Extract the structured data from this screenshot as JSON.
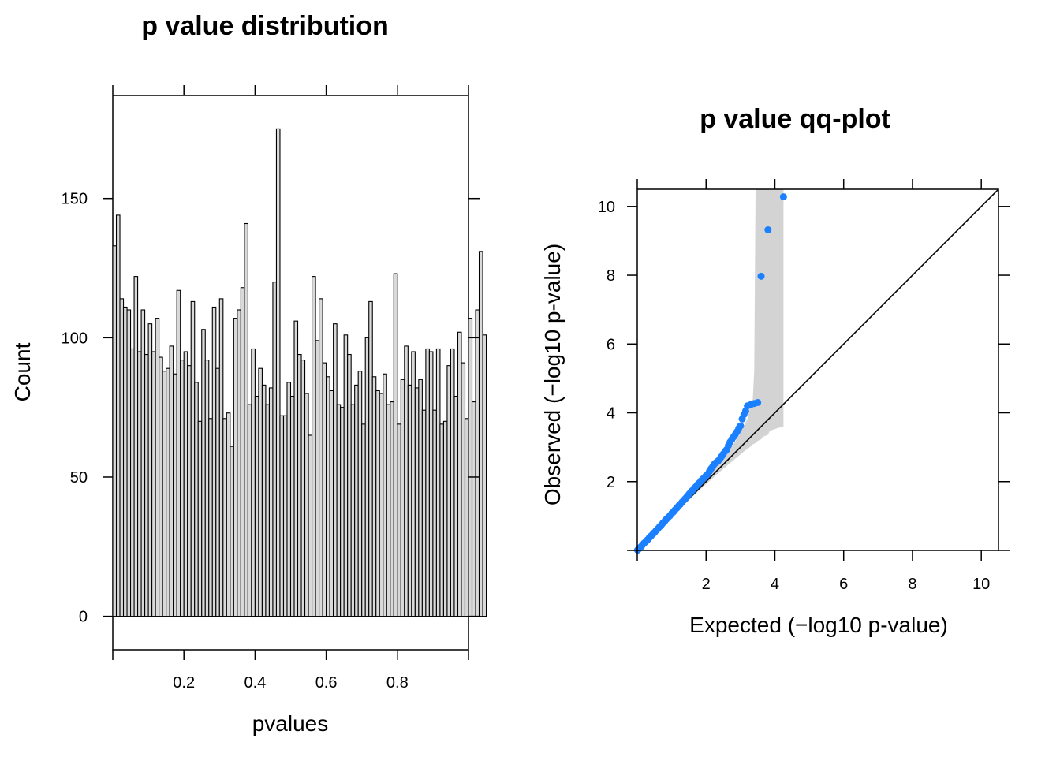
{
  "chart_data": [
    {
      "type": "bar",
      "title": "p value distribution",
      "xlabel": "pvalues",
      "ylabel": "Count",
      "bin_width": 0.01,
      "xlim": [
        0,
        1
      ],
      "ylim": [
        -12,
        187
      ],
      "x_ticks": [
        "0.2",
        "0.4",
        "0.6",
        "0.8"
      ],
      "y_ticks": [
        "0",
        "50",
        "100",
        "150"
      ],
      "bar_color": "#d9d9d9",
      "values": [
        133,
        144,
        114,
        111,
        110,
        96,
        122,
        95,
        110,
        94,
        105,
        95,
        107,
        93,
        88,
        89,
        97,
        87,
        117,
        92,
        95,
        90,
        113,
        84,
        70,
        103,
        92,
        71,
        111,
        89,
        114,
        71,
        73,
        61,
        107,
        110,
        118,
        141,
        76,
        96,
        79,
        89,
        83,
        76,
        82,
        120,
        175,
        72,
        72,
        84,
        79,
        106,
        94,
        92,
        80,
        65,
        122,
        99,
        114,
        91,
        86,
        81,
        105,
        76,
        75,
        101,
        94,
        76,
        83,
        88,
        69,
        100,
        113,
        86,
        81,
        80,
        87,
        76,
        77,
        123,
        69,
        85,
        97,
        83,
        95,
        82,
        85,
        74,
        96,
        95,
        74,
        96,
        69,
        70,
        90,
        96,
        79,
        102,
        91,
        71,
        107,
        77,
        110,
        131,
        101
      ]
    },
    {
      "type": "scatter",
      "title": "p value qq-plot",
      "xlabel": "Expected (−log10 p-value)",
      "ylabel": "Observed (−log10 p-value)",
      "xlim": [
        0,
        10.5
      ],
      "ylim": [
        0,
        10.5
      ],
      "x_ticks": [
        "2",
        "4",
        "6",
        "8",
        "10"
      ],
      "y_ticks": [
        "2",
        "4",
        "6",
        "8",
        "10"
      ],
      "point_color": "#1a80ff",
      "band_color": "#d3d3d3",
      "reference_line": "y = x",
      "points": [
        [
          0.01,
          0.01
        ],
        [
          0.05,
          0.05
        ],
        [
          0.1,
          0.1
        ],
        [
          0.15,
          0.16
        ],
        [
          0.2,
          0.21
        ],
        [
          0.25,
          0.26
        ],
        [
          0.3,
          0.31
        ],
        [
          0.35,
          0.37
        ],
        [
          0.4,
          0.42
        ],
        [
          0.45,
          0.47
        ],
        [
          0.5,
          0.52
        ],
        [
          0.55,
          0.58
        ],
        [
          0.6,
          0.63
        ],
        [
          0.65,
          0.69
        ],
        [
          0.7,
          0.74
        ],
        [
          0.75,
          0.8
        ],
        [
          0.8,
          0.85
        ],
        [
          0.85,
          0.91
        ],
        [
          0.9,
          0.96
        ],
        [
          0.95,
          1.01
        ],
        [
          1.0,
          1.07
        ],
        [
          1.05,
          1.12
        ],
        [
          1.1,
          1.18
        ],
        [
          1.15,
          1.23
        ],
        [
          1.2,
          1.29
        ],
        [
          1.25,
          1.34
        ],
        [
          1.3,
          1.4
        ],
        [
          1.35,
          1.46
        ],
        [
          1.4,
          1.51
        ],
        [
          1.45,
          1.57
        ],
        [
          1.5,
          1.63
        ],
        [
          1.55,
          1.69
        ],
        [
          1.6,
          1.74
        ],
        [
          1.65,
          1.8
        ],
        [
          1.7,
          1.85
        ],
        [
          1.75,
          1.91
        ],
        [
          1.8,
          1.96
        ],
        [
          1.85,
          2.02
        ],
        [
          1.9,
          2.07
        ],
        [
          1.95,
          2.12
        ],
        [
          2.0,
          2.17
        ],
        [
          2.05,
          2.22
        ],
        [
          2.1,
          2.3
        ],
        [
          2.15,
          2.38
        ],
        [
          2.2,
          2.45
        ],
        [
          2.25,
          2.52
        ],
        [
          2.3,
          2.56
        ],
        [
          2.35,
          2.6
        ],
        [
          2.4,
          2.66
        ],
        [
          2.45,
          2.73
        ],
        [
          2.5,
          2.8
        ],
        [
          2.55,
          2.88
        ],
        [
          2.6,
          2.93
        ],
        [
          2.65,
          3.05
        ],
        [
          2.7,
          3.15
        ],
        [
          2.75,
          3.23
        ],
        [
          2.8,
          3.3
        ],
        [
          2.85,
          3.37
        ],
        [
          2.9,
          3.45
        ],
        [
          2.95,
          3.55
        ],
        [
          3.0,
          3.62
        ],
        [
          3.05,
          3.82
        ],
        [
          3.1,
          3.95
        ],
        [
          3.15,
          4.05
        ],
        [
          3.2,
          4.2
        ],
        [
          3.3,
          4.24
        ],
        [
          3.4,
          4.27
        ],
        [
          3.5,
          4.3
        ],
        [
          3.6,
          7.97
        ],
        [
          3.8,
          9.32
        ],
        [
          4.25,
          10.28
        ]
      ]
    }
  ]
}
